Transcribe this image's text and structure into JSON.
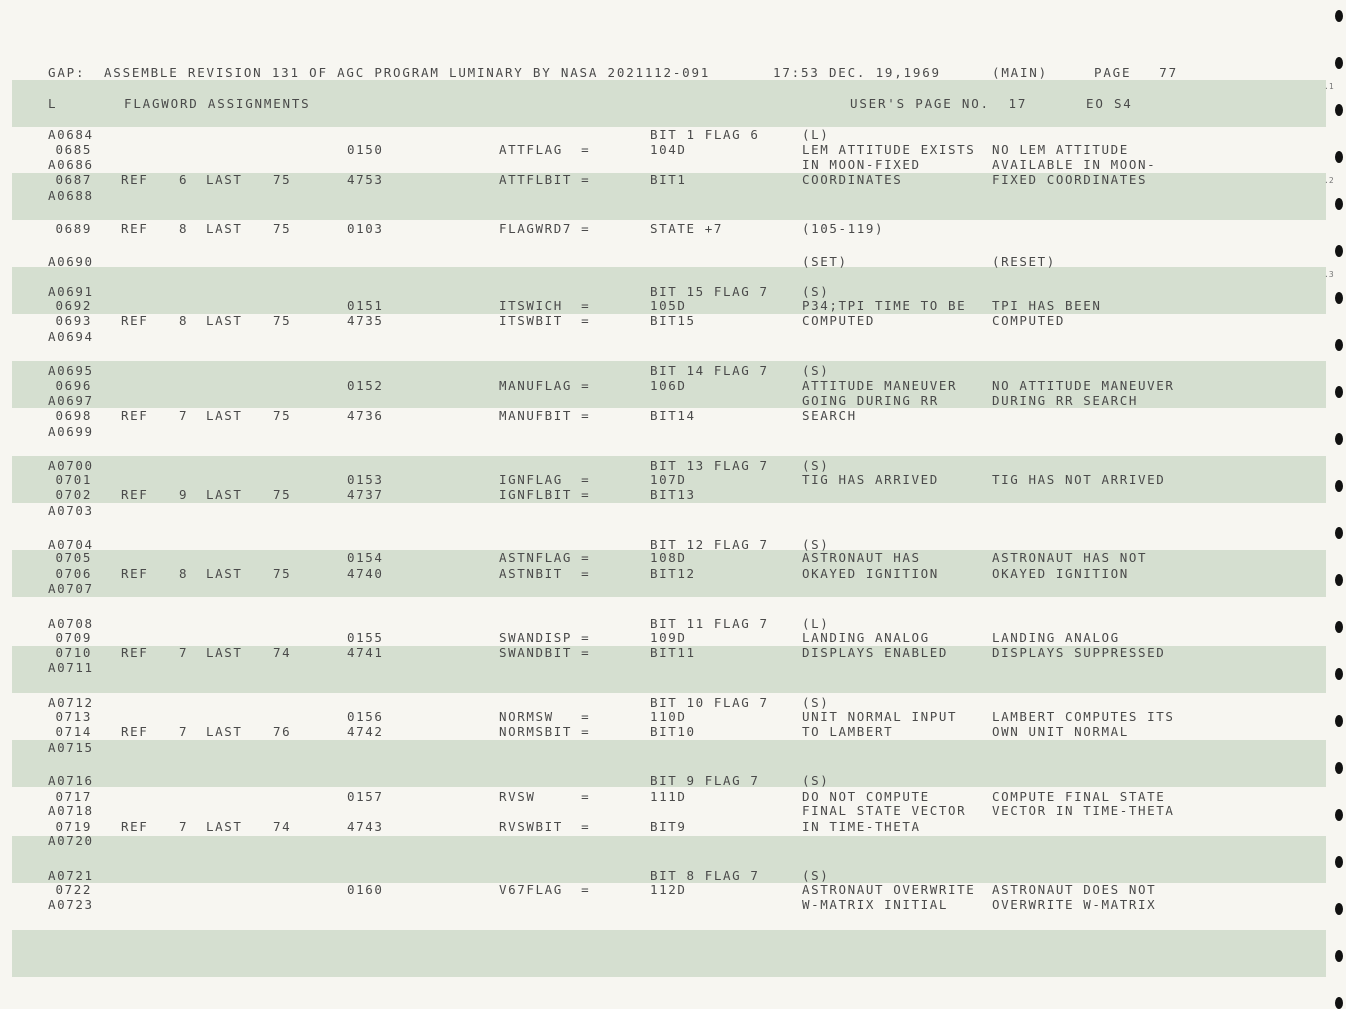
{
  "header": {
    "line1_left": "GAP:  ASSEMBLE REVISION 131 OF AGC PROGRAM LUMINARY BY NASA 2021112-091",
    "line1_time": "17:53 DEC. 19,1969",
    "line1_main": "(MAIN)",
    "line1_page": "PAGE   77",
    "line2_l": "L",
    "line2_title": "FLAGWORD ASSIGNMENTS",
    "line2_userpage": "USER'S PAGE NO.  17",
    "line2_eo": "EO S4"
  },
  "edge_marks": [
    ".1",
    ".2",
    ".3"
  ],
  "listing": [
    {
      "loc": "A0684",
      "bit": "BIT 1 FLAG 6",
      "d1": "(L)"
    },
    {
      "loc": "0685",
      "addr": "0150",
      "sym": "ATTFLAG  =",
      "bit": "104D",
      "d1": "LEM ATTITUDE EXISTS",
      "d2": "NO LEM ATTITUDE"
    },
    {
      "loc": "A0686",
      "d1": "IN MOON-FIXED",
      "d2": "AVAILABLE IN MOON-"
    },
    {
      "loc": "0687",
      "ref": "REF",
      "refn": "6",
      "last": "LAST",
      "lastn": "75",
      "addr": "4753",
      "sym": "ATTFLBIT =",
      "bit": "BIT1",
      "d1": "COORDINATES",
      "d2": "FIXED COORDINATES"
    },
    {
      "loc": "A0688"
    },
    {
      "loc": "0689",
      "ref": "REF",
      "refn": "8",
      "last": "LAST",
      "lastn": "75",
      "addr": "0103",
      "sym": "FLAGWRD7 =",
      "bit": "STATE +7",
      "d1": "(105-119)"
    },
    {
      "loc": "A0690",
      "d1": "(SET)",
      "d2": "(RESET)"
    },
    {
      "loc": "A0691",
      "bit": "BIT 15 FLAG 7",
      "d1": "(S)"
    },
    {
      "loc": "0692",
      "addr": "0151",
      "sym": "ITSWICH  =",
      "bit": "105D",
      "d1": "P34;TPI TIME TO BE",
      "d2": "TPI HAS BEEN"
    },
    {
      "loc": "0693",
      "ref": "REF",
      "refn": "8",
      "last": "LAST",
      "lastn": "75",
      "addr": "4735",
      "sym": "ITSWBIT  =",
      "bit": "BIT15",
      "d1": "COMPUTED",
      "d2": "COMPUTED"
    },
    {
      "loc": "A0694"
    },
    {
      "loc": "A0695",
      "bit": "BIT 14 FLAG 7",
      "d1": "(S)"
    },
    {
      "loc": "0696",
      "addr": "0152",
      "sym": "MANUFLAG =",
      "bit": "106D",
      "d1": "ATTITUDE MANEUVER",
      "d2": "NO ATTITUDE MANEUVER"
    },
    {
      "loc": "A0697",
      "d1": "GOING DURING RR",
      "d2": "DURING RR SEARCH"
    },
    {
      "loc": "0698",
      "ref": "REF",
      "refn": "7",
      "last": "LAST",
      "lastn": "75",
      "addr": "4736",
      "sym": "MANUFBIT =",
      "bit": "BIT14",
      "d1": "SEARCH"
    },
    {
      "loc": "A0699"
    },
    {
      "loc": "A0700",
      "bit": "BIT 13 FLAG 7",
      "d1": "(S)"
    },
    {
      "loc": "0701",
      "addr": "0153",
      "sym": "IGNFLAG  =",
      "bit": "107D",
      "d1": "TIG HAS ARRIVED",
      "d2": "TIG HAS NOT ARRIVED"
    },
    {
      "loc": "0702",
      "ref": "REF",
      "refn": "9",
      "last": "LAST",
      "lastn": "75",
      "addr": "4737",
      "sym": "IGNFLBIT =",
      "bit": "BIT13"
    },
    {
      "loc": "A0703"
    },
    {
      "loc": "A0704",
      "bit": "BIT 12 FLAG 7",
      "d1": "(S)"
    },
    {
      "loc": "0705",
      "addr": "0154",
      "sym": "ASTNFLAG =",
      "bit": "108D",
      "d1": "ASTRONAUT HAS",
      "d2": "ASTRONAUT HAS NOT"
    },
    {
      "loc": "0706",
      "ref": "REF",
      "refn": "8",
      "last": "LAST",
      "lastn": "75",
      "addr": "4740",
      "sym": "ASTNBIT  =",
      "bit": "BIT12",
      "d1": "OKAYED IGNITION",
      "d2": "OKAYED IGNITION"
    },
    {
      "loc": "A0707"
    },
    {
      "loc": "A0708",
      "bit": "BIT 11 FLAG 7",
      "d1": "(L)"
    },
    {
      "loc": "0709",
      "addr": "0155",
      "sym": "SWANDISP =",
      "bit": "109D",
      "d1": "LANDING ANALOG",
      "d2": "LANDING ANALOG"
    },
    {
      "loc": "0710",
      "ref": "REF",
      "refn": "7",
      "last": "LAST",
      "lastn": "74",
      "addr": "4741",
      "sym": "SWANDBIT =",
      "bit": "BIT11",
      "d1": "DISPLAYS ENABLED",
      "d2": "DISPLAYS SUPPRESSED"
    },
    {
      "loc": "A0711"
    },
    {
      "loc": "A0712",
      "bit": "BIT 10 FLAG 7",
      "d1": "(S)"
    },
    {
      "loc": "0713",
      "addr": "0156",
      "sym": "NORMSW   =",
      "bit": "110D",
      "d1": "UNIT NORMAL INPUT",
      "d2": "LAMBERT COMPUTES ITS"
    },
    {
      "loc": "0714",
      "ref": "REF",
      "refn": "7",
      "last": "LAST",
      "lastn": "76",
      "addr": "4742",
      "sym": "NORMSBIT =",
      "bit": "BIT10",
      "d1": "TO LAMBERT",
      "d2": "OWN UNIT NORMAL"
    },
    {
      "loc": "A0715"
    },
    {
      "loc": "A0716",
      "bit": "BIT 9 FLAG 7",
      "d1": "(S)"
    },
    {
      "loc": "0717",
      "addr": "0157",
      "sym": "RVSW     =",
      "bit": "111D",
      "d1": "DO NOT COMPUTE",
      "d2": "COMPUTE FINAL STATE"
    },
    {
      "loc": "A0718",
      "d1": "FINAL STATE VECTOR",
      "d2": "VECTOR IN TIME-THETA"
    },
    {
      "loc": "0719",
      "ref": "REF",
      "refn": "7",
      "last": "LAST",
      "lastn": "74",
      "addr": "4743",
      "sym": "RVSWBIT  =",
      "bit": "BIT9",
      "d1": "IN TIME-THETA"
    },
    {
      "loc": "A0720"
    },
    {
      "loc": "A0721",
      "bit": "BIT 8 FLAG 7",
      "d1": "(S)"
    },
    {
      "loc": "0722",
      "addr": "0160",
      "sym": "V67FLAG  =",
      "bit": "112D",
      "d1": "ASTRONAUT OVERWRITE",
      "d2": "ASTRONAUT DOES NOT"
    },
    {
      "loc": "A0723",
      "d1": "W-MATRIX INITIAL",
      "d2": "OVERWRITE W-MATRIX"
    }
  ]
}
